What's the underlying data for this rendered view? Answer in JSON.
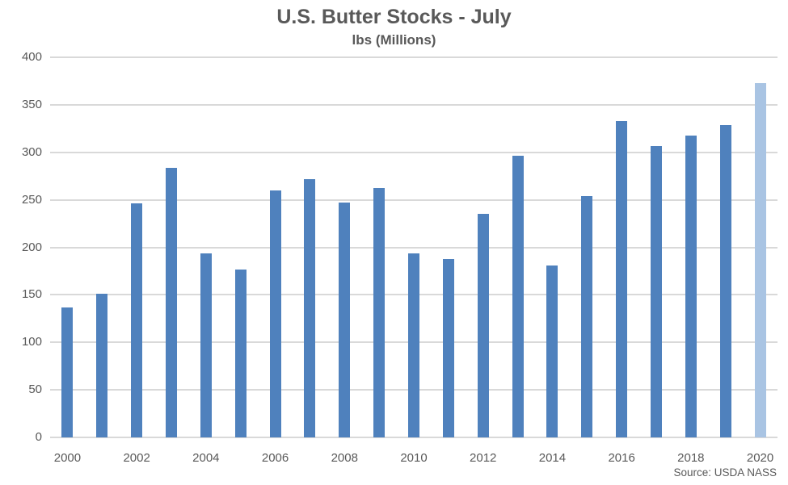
{
  "chart_data": {
    "type": "bar",
    "title": "U.S. Butter Stocks - July",
    "subtitle": "lbs (Millions)",
    "xlabel": "",
    "ylabel": "lbs (Millions)",
    "categories": [
      "2000",
      "2001",
      "2002",
      "2003",
      "2004",
      "2005",
      "2006",
      "2007",
      "2008",
      "2009",
      "2010",
      "2011",
      "2012",
      "2013",
      "2014",
      "2015",
      "2016",
      "2017",
      "2018",
      "2019",
      "2020"
    ],
    "values": [
      137,
      151,
      246,
      284,
      194,
      177,
      260,
      272,
      247,
      262,
      194,
      188,
      235,
      296,
      181,
      254,
      333,
      307,
      318,
      329,
      373
    ],
    "ylim": [
      0,
      400
    ],
    "yticks": [
      0,
      50,
      100,
      150,
      200,
      250,
      300,
      350,
      400
    ],
    "x_tick_labels": [
      "2000",
      "2002",
      "2004",
      "2006",
      "2008",
      "2010",
      "2012",
      "2014",
      "2016",
      "2018",
      "2020"
    ],
    "grid": true,
    "legend": false,
    "bar_color": "#4F81BD",
    "highlight_color": "#A9C4E3",
    "highlight_index": 20,
    "source": "Source: USDA NASS"
  },
  "colors": {
    "text": "#595959",
    "gridline": "#D9D9D9",
    "background": "#FFFFFF"
  }
}
